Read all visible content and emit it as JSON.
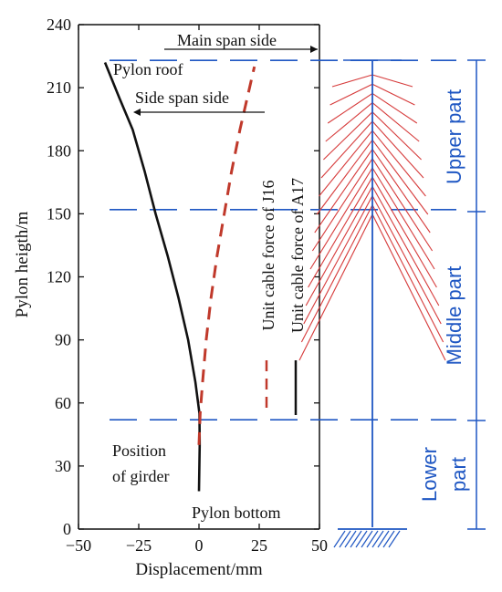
{
  "chart_data": {
    "type": "line",
    "title": "",
    "xlabel": "Displacement/mm",
    "ylabel": "Pylon heigth/m",
    "xlim": [
      -50,
      50
    ],
    "ylim": [
      0,
      240
    ],
    "x_ticks": [
      -50,
      -25,
      0,
      25,
      50
    ],
    "y_ticks": [
      0,
      30,
      60,
      90,
      120,
      150,
      180,
      210,
      240
    ],
    "series": [
      {
        "name": "Unit cable force of A17",
        "style": "solid",
        "color": "#111111",
        "x": [
          0.0,
          0.3,
          0.2,
          -1.5,
          -4.5,
          -8.5,
          -13.0,
          -18.0,
          -22.5,
          -27.5,
          -33.0,
          -39.0
        ],
        "y": [
          18,
          40,
          55,
          70,
          90,
          110,
          130,
          150,
          170,
          190,
          205,
          222
        ]
      },
      {
        "name": "Unit cable force of J16",
        "style": "dashed",
        "color": "#c0392b",
        "x": [
          0.0,
          0.5,
          1.5,
          3.0,
          5.0,
          7.5,
          10.5,
          13.5,
          17.0,
          20.0,
          23.0
        ],
        "y": [
          40,
          55,
          70,
          90,
          110,
          130,
          150,
          170,
          190,
          205,
          220
        ]
      }
    ],
    "reference_lines_y": [
      52,
      152,
      223
    ],
    "annotations": {
      "main_span": "Main span side",
      "pylon_roof": "Pylon roof",
      "side_span": "Side span side",
      "position_1": "Position",
      "position_2": "of girder",
      "pylon_bottom": "Pylon bottom"
    },
    "regions": {
      "upper": "Upper part",
      "middle": "Middle part",
      "lower_1": "Lower",
      "lower_2": "part"
    },
    "colors": {
      "axis": "#111111",
      "guide": "#1f57c3",
      "cable": "#d63a3a"
    }
  }
}
